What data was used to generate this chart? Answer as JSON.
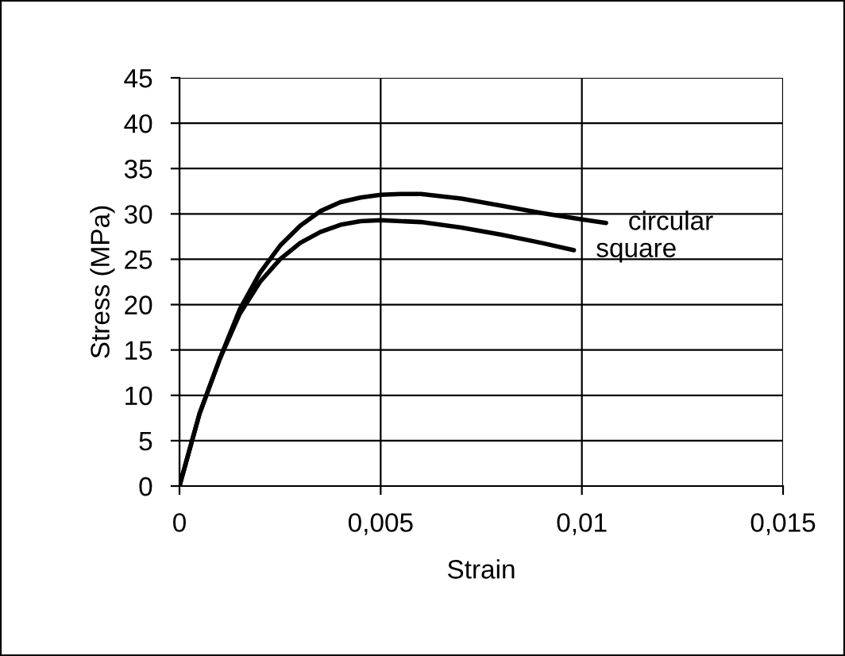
{
  "chart_data": {
    "type": "line",
    "xlabel": "Strain",
    "ylabel": "Stress (MPa)",
    "x": [
      0,
      0.0005,
      0.001,
      0.0015,
      0.002,
      0.0025,
      0.003,
      0.0035,
      0.004,
      0.0045,
      0.005,
      0.0055,
      0.006,
      0.007,
      0.008,
      0.009,
      0.01,
      0.0106
    ],
    "series": [
      {
        "name": "circular",
        "color": "#000000",
        "values": [
          0,
          8,
          14,
          19.5,
          23.5,
          26.5,
          28.7,
          30.3,
          31.3,
          31.8,
          32.1,
          32.2,
          32.2,
          31.7,
          30.9,
          30.1,
          29.4,
          29.0
        ]
      },
      {
        "name": "square",
        "color": "#000000",
        "x": [
          0,
          0.0005,
          0.001,
          0.0015,
          0.002,
          0.0025,
          0.003,
          0.0035,
          0.004,
          0.0045,
          0.005,
          0.006,
          0.007,
          0.008,
          0.009,
          0.0098
        ],
        "values": [
          0,
          8,
          14,
          19,
          22.5,
          25,
          26.8,
          28,
          28.8,
          29.2,
          29.3,
          29.1,
          28.5,
          27.7,
          26.8,
          26.0
        ]
      }
    ],
    "xlim": [
      0,
      0.015
    ],
    "xticks": [
      0,
      {
        "value": 0.005,
        "label": "0,005"
      },
      {
        "value": 0.01,
        "label": "0,01"
      },
      {
        "value": 0.015,
        "label": "0,015"
      }
    ],
    "ylim": [
      0,
      45
    ],
    "yticks": [
      0,
      5,
      10,
      15,
      20,
      25,
      30,
      35,
      40,
      45
    ],
    "grid": true,
    "marker": "none",
    "line_style": "solid"
  }
}
